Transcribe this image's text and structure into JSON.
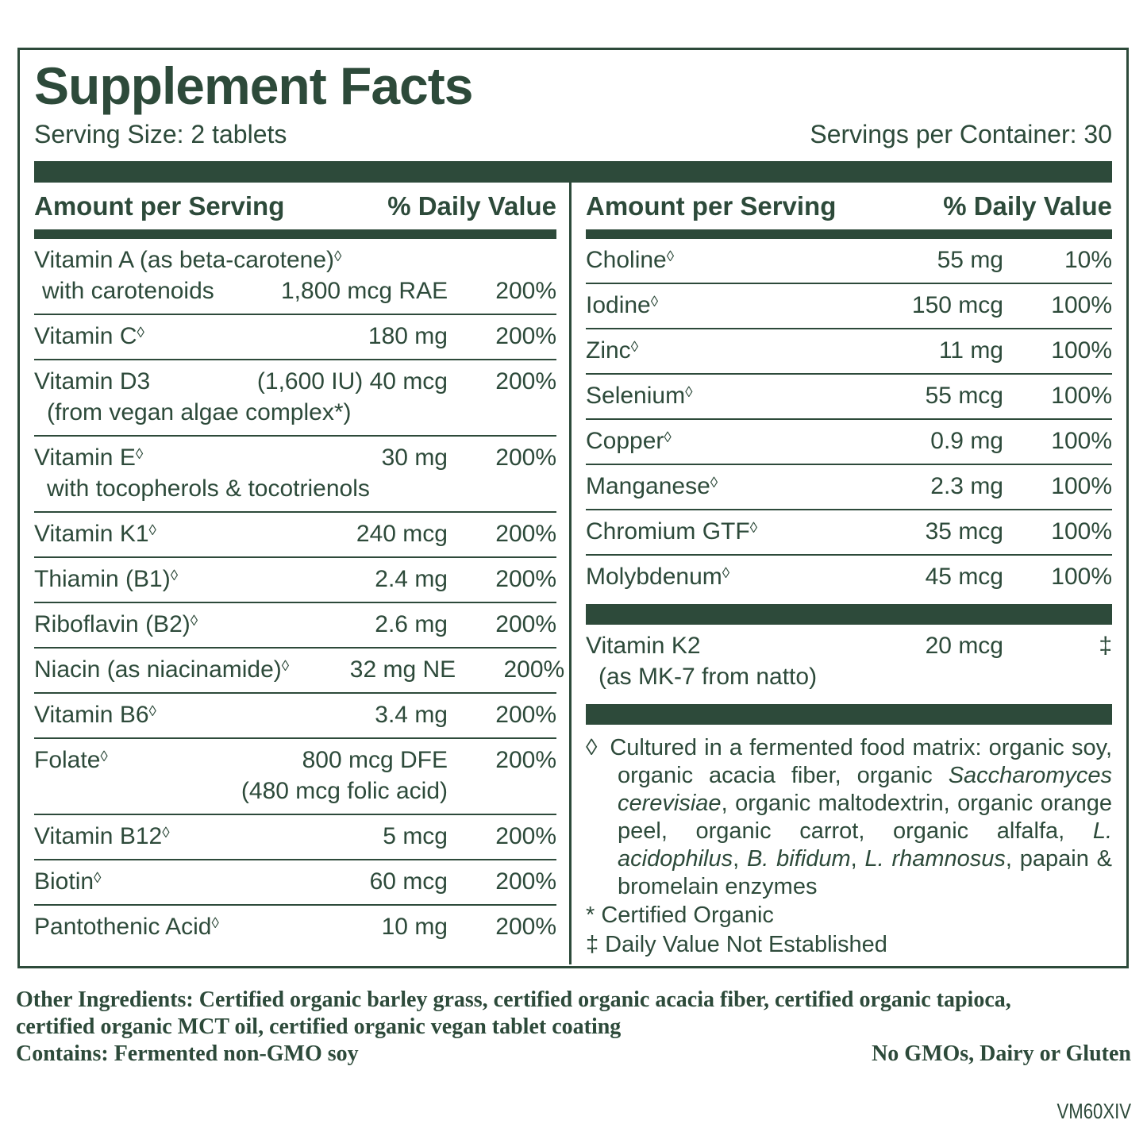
{
  "colors": {
    "green": "#2d4a3a"
  },
  "panel": {
    "title": "Supplement Facts",
    "serving_size": "Serving Size: 2 tablets",
    "servings_per_container": "Servings per Container: 30",
    "col_header_amount": "Amount per Serving",
    "col_header_dv": "% Daily Value"
  },
  "left_rows": [
    {
      "name": "Vitamin A (as beta-carotene)",
      "sup": "◊",
      "line2_label": "with carotenoids",
      "amount": "1,800 mcg RAE",
      "pct": "200%"
    },
    {
      "name": "Vitamin C",
      "sup": "◊",
      "amount": "180 mg",
      "pct": "200%"
    },
    {
      "name": "Vitamin D3",
      "sup": "",
      "amount": "(1,600 IU) 40 mcg",
      "pct": "200%",
      "sub": "(from vegan algae complex*)"
    },
    {
      "name": "Vitamin E",
      "sup": "◊",
      "amount": "30 mg",
      "pct": "200%",
      "sub": "with tocopherols & tocotrienols"
    },
    {
      "name": "Vitamin K1",
      "sup": "◊",
      "amount": "240 mcg",
      "pct": "200%"
    },
    {
      "name": "Thiamin (B1)",
      "sup": "◊",
      "amount": "2.4 mg",
      "pct": "200%"
    },
    {
      "name": "Riboflavin (B2)",
      "sup": "◊",
      "amount": "2.6 mg",
      "pct": "200%"
    },
    {
      "name": "Niacin (as niacinamide)",
      "sup": "◊",
      "amount": "32 mg NE",
      "pct": "200%"
    },
    {
      "name": "Vitamin B6",
      "sup": "◊",
      "amount": "3.4 mg",
      "pct": "200%"
    },
    {
      "name": "Folate",
      "sup": "◊",
      "amount": "800 mcg DFE",
      "pct": "200%",
      "sub_amount": "(480 mcg folic acid)"
    },
    {
      "name": "Vitamin B12",
      "sup": "◊",
      "amount": "5 mcg",
      "pct": "200%"
    },
    {
      "name": "Biotin",
      "sup": "◊",
      "amount": "60 mcg",
      "pct": "200%"
    },
    {
      "name": "Pantothenic Acid",
      "sup": "◊",
      "amount": "10 mg",
      "pct": "200%"
    }
  ],
  "right_rows": [
    {
      "name": "Choline",
      "sup": "◊",
      "amount": "55 mg",
      "pct": "10%"
    },
    {
      "name": "Iodine",
      "sup": "◊",
      "amount": "150 mcg",
      "pct": "100%"
    },
    {
      "name": "Zinc",
      "sup": "◊",
      "amount": "11 mg",
      "pct": "100%"
    },
    {
      "name": "Selenium",
      "sup": "◊",
      "amount": "55 mcg",
      "pct": "100%"
    },
    {
      "name": "Copper",
      "sup": "◊",
      "amount": "0.9 mg",
      "pct": "100%"
    },
    {
      "name": "Manganese",
      "sup": "◊",
      "amount": "2.3 mg",
      "pct": "100%"
    },
    {
      "name": "Chromium GTF",
      "sup": "◊",
      "amount": "35 mcg",
      "pct": "100%"
    },
    {
      "name": "Molybdenum",
      "sup": "◊",
      "amount": "45 mcg",
      "pct": "100%"
    }
  ],
  "vitamin_k2": {
    "name": "Vitamin K2",
    "amount": "20 mcg",
    "pct": "‡",
    "sub": "(as MK-7 from natto)"
  },
  "footnote": {
    "segments": [
      {
        "t": "◊",
        "c": "dia"
      },
      {
        "t": "Cultured in a fermented food matrix: organic soy, organic acacia fiber, organic "
      },
      {
        "t": "Saccharomyces cerevisiae",
        "i": true
      },
      {
        "t": ", organic maltodextrin, organic orange peel, organic carrot, organic alfalfa, "
      },
      {
        "t": "L. acidophilus",
        "i": true
      },
      {
        "t": ", "
      },
      {
        "t": "B. bifidum",
        "i": true
      },
      {
        "t": ", "
      },
      {
        "t": "L. rhamnosus",
        "i": true
      },
      {
        "t": ", papain & bromelain enzymes"
      }
    ],
    "certified_organic": "* Certified Organic",
    "dv_not_established": "‡ Daily Value Not Established"
  },
  "bottom": {
    "other_ingredients_line1": "Other Ingredients: Certified organic barley grass, certified organic acacia fiber, certified organic tapioca,",
    "other_ingredients_line2": "certified organic MCT oil, certified organic vegan tablet coating",
    "contains": "Contains: Fermented non-GMO soy",
    "no_gmos": "No GMOs, Dairy or Gluten",
    "code": "VM60XIV"
  }
}
